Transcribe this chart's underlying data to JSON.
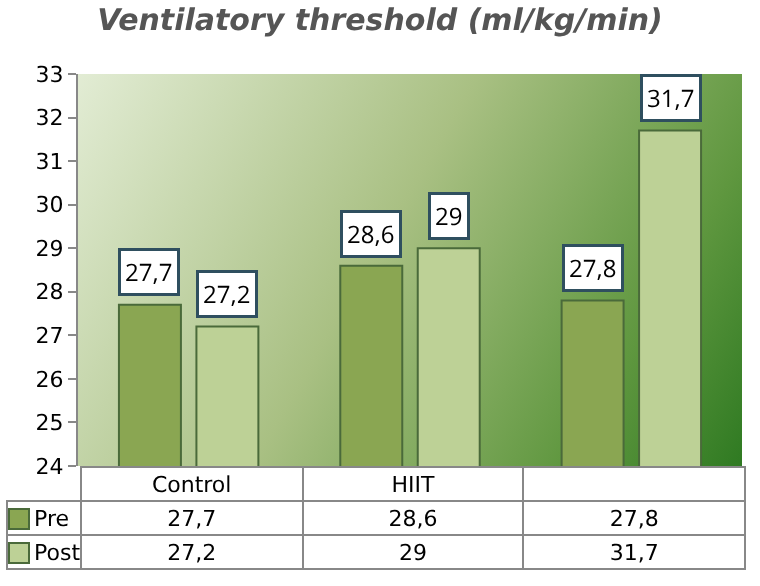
{
  "chart_data": {
    "type": "bar",
    "title": "Ventilatory threshold (ml/kg/min)",
    "categories": [
      "Control",
      "HIIT",
      null
    ],
    "series": [
      {
        "name": "Pre",
        "color": "#8aa652",
        "values": [
          27.7,
          28.6,
          27.8
        ],
        "value_labels": [
          "27,7",
          "28,6",
          "27,8"
        ]
      },
      {
        "name": "Post",
        "color": "#bdd196",
        "values": [
          27.2,
          29,
          31.7
        ],
        "value_labels": [
          "27,2",
          "29",
          "31,7"
        ]
      }
    ],
    "ylim": [
      24,
      33
    ],
    "yticks": [
      24,
      25,
      26,
      27,
      28,
      29,
      30,
      31,
      32,
      33
    ],
    "grid": false,
    "legend": "bottom"
  }
}
